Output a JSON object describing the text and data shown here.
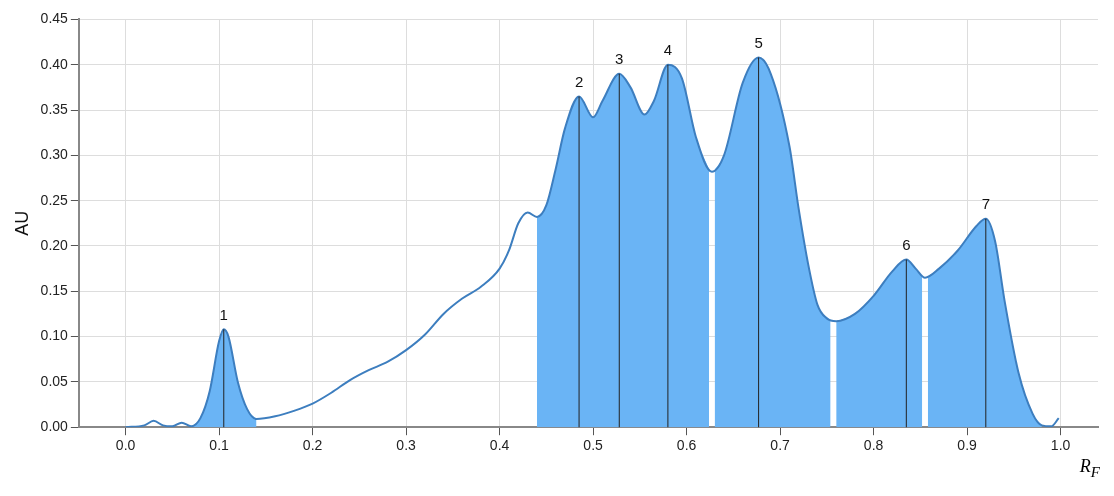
{
  "chart_data": {
    "type": "line",
    "xlabel": "R$_{F}$",
    "ylabel": "AU",
    "xlim": [
      -0.05,
      1.04
    ],
    "ylim": [
      0,
      0.45
    ],
    "xticks": [
      {
        "value": 0,
        "label": "0.0"
      },
      0.1,
      0.2,
      0.3,
      0.4,
      0.5,
      0.6,
      0.7,
      0.8,
      0.9,
      {
        "value": 1,
        "label": "1.0"
      }
    ],
    "yticks": [
      {
        "value": 0,
        "label": "0.00"
      },
      0.05,
      {
        "value": 0.1,
        "label": "0.10"
      },
      0.15,
      {
        "value": 0.2,
        "label": "0.20"
      },
      0.25,
      {
        "value": 0.3,
        "label": "0.30"
      },
      0.35,
      {
        "value": 0.4,
        "label": "0.40"
      },
      0.45
    ],
    "grid": true,
    "legend": false,
    "marker": "none",
    "line_style": "solid",
    "series": [
      {
        "type": "line",
        "color": "#3d7ebf",
        "x": [
          0,
          0.02,
          0.03,
          0.04,
          0.05,
          0.06,
          0.07,
          0.08,
          0.09,
          0.1,
          0.105,
          0.11,
          0.12,
          0.13,
          0.14,
          0.16,
          0.18,
          0.2,
          0.22,
          0.24,
          0.26,
          0.28,
          0.3,
          0.32,
          0.34,
          0.36,
          0.38,
          0.4,
          0.41,
          0.42,
          0.43,
          0.44,
          0.45,
          0.46,
          0.47,
          0.485,
          0.5,
          0.51,
          0.528,
          0.54,
          0.555,
          0.565,
          0.58,
          0.595,
          0.61,
          0.627,
          0.64,
          0.66,
          0.677,
          0.69,
          0.71,
          0.72,
          0.73,
          0.74,
          0.75,
          0.76,
          0.78,
          0.8,
          0.82,
          0.835,
          0.845,
          0.855,
          0.87,
          0.89,
          0.91,
          0.92,
          0.93,
          0.94,
          0.955,
          0.97,
          0.98,
          0.99,
          0.998
        ],
        "values": [
          0,
          0.002,
          0.007,
          0.002,
          0.001,
          0.005,
          0.001,
          0.01,
          0.04,
          0.095,
          0.108,
          0.1,
          0.05,
          0.02,
          0.009,
          0.012,
          0.018,
          0.026,
          0.038,
          0.052,
          0.063,
          0.072,
          0.085,
          0.102,
          0.125,
          0.142,
          0.155,
          0.175,
          0.195,
          0.225,
          0.237,
          0.232,
          0.245,
          0.285,
          0.33,
          0.365,
          0.342,
          0.36,
          0.39,
          0.375,
          0.345,
          0.36,
          0.4,
          0.385,
          0.32,
          0.282,
          0.3,
          0.38,
          0.408,
          0.39,
          0.31,
          0.24,
          0.18,
          0.135,
          0.12,
          0.117,
          0.125,
          0.145,
          0.172,
          0.185,
          0.175,
          0.165,
          0.175,
          0.195,
          0.222,
          0.23,
          0.205,
          0.14,
          0.06,
          0.015,
          0.002,
          0.001,
          0.01
        ]
      },
      {
        "type": "area",
        "color": "#6ab4f5",
        "x": [
          0.07,
          0.08,
          0.09,
          0.1,
          0.105,
          0.11,
          0.12,
          0.13,
          0.14
        ],
        "values": [
          0.001,
          0.01,
          0.04,
          0.095,
          0.108,
          0.1,
          0.05,
          0.02,
          0.009
        ]
      },
      {
        "type": "area",
        "color": "#6ab4f5",
        "x": [
          0.44,
          0.45,
          0.46,
          0.47,
          0.485,
          0.5,
          0.51,
          0.528,
          0.54,
          0.555,
          0.565,
          0.58,
          0.595,
          0.61,
          0.624
        ],
        "values": [
          0.232,
          0.245,
          0.285,
          0.33,
          0.365,
          0.342,
          0.36,
          0.39,
          0.375,
          0.345,
          0.36,
          0.4,
          0.385,
          0.32,
          0.285
        ]
      },
      {
        "type": "area",
        "color": "#6ab4f5",
        "x": [
          0.63,
          0.64,
          0.66,
          0.677,
          0.69,
          0.71,
          0.72,
          0.73,
          0.74,
          0.754
        ],
        "values": [
          0.284,
          0.3,
          0.38,
          0.408,
          0.39,
          0.31,
          0.24,
          0.18,
          0.135,
          0.118
        ]
      },
      {
        "type": "area",
        "color": "#6ab4f5",
        "x": [
          0.76,
          0.78,
          0.8,
          0.82,
          0.835,
          0.845,
          0.852
        ],
        "values": [
          0.117,
          0.125,
          0.145,
          0.172,
          0.185,
          0.175,
          0.166
        ]
      },
      {
        "type": "area",
        "color": "#6ab4f5",
        "x": [
          0.858,
          0.87,
          0.89,
          0.91,
          0.92,
          0.93,
          0.94,
          0.955,
          0.97,
          0.98
        ],
        "values": [
          0.166,
          0.175,
          0.195,
          0.222,
          0.23,
          0.205,
          0.14,
          0.06,
          0.015,
          0.002
        ]
      }
    ],
    "annotations": [
      {
        "text": "1",
        "x": 0.105,
        "y": 0.108
      },
      {
        "text": "2",
        "x": 0.485,
        "y": 0.365
      },
      {
        "text": "3",
        "x": 0.528,
        "y": 0.39
      },
      {
        "text": "4",
        "x": 0.58,
        "y": 0.4
      },
      {
        "text": "5",
        "x": 0.677,
        "y": 0.408
      },
      {
        "text": "6",
        "x": 0.835,
        "y": 0.185
      },
      {
        "text": "7",
        "x": 0.92,
        "y": 0.23
      }
    ]
  }
}
